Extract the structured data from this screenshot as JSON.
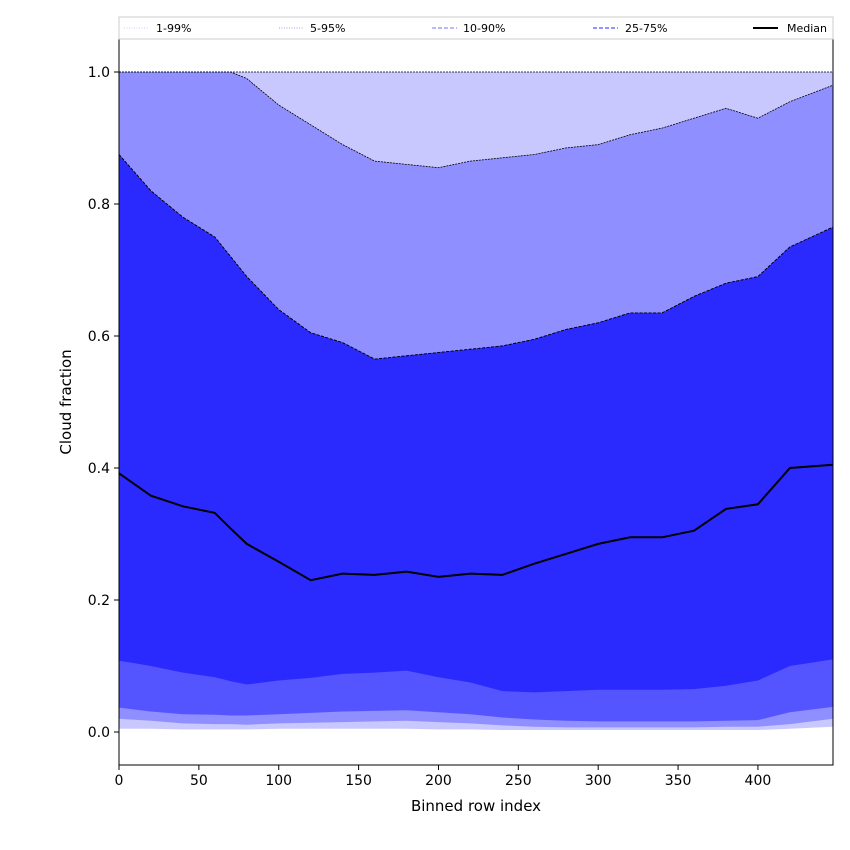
{
  "chart_data": {
    "type": "area",
    "xlabel": "Binned row index",
    "ylabel": "Cloud fraction",
    "xlim": [
      0,
      447
    ],
    "ylim": [
      -0.05,
      1.05
    ],
    "x_ticks": [
      "0",
      "50",
      "100",
      "150",
      "200",
      "250",
      "300",
      "350",
      "400"
    ],
    "y_ticks": [
      "0.0",
      "0.2",
      "0.4",
      "0.6",
      "0.8",
      "1.0"
    ],
    "grid": false,
    "legend_position": "top",
    "legend": [
      {
        "label": "1-99%",
        "style": "dotted",
        "color": "#d8d8ff"
      },
      {
        "label": "5-95%",
        "style": "dotted",
        "color": "#b0b0ff"
      },
      {
        "label": "10-90%",
        "style": "dashed",
        "color": "#8f8fff"
      },
      {
        "label": "25-75%",
        "style": "dashed",
        "color": "#5555ff"
      },
      {
        "label": "Median",
        "style": "solid",
        "color": "#000000"
      }
    ],
    "x": [
      0,
      20,
      40,
      60,
      70,
      80,
      100,
      120,
      140,
      160,
      180,
      200,
      220,
      240,
      260,
      280,
      300,
      320,
      340,
      360,
      380,
      400,
      420,
      447
    ],
    "bands": [
      {
        "name": "1-99%",
        "color": "#c8c8ff",
        "lower": [
          0.005,
          0.005,
          0.004,
          0.004,
          0.004,
          0.004,
          0.005,
          0.005,
          0.005,
          0.005,
          0.005,
          0.004,
          0.004,
          0.003,
          0.003,
          0.003,
          0.003,
          0.003,
          0.003,
          0.003,
          0.003,
          0.003,
          0.005,
          0.008
        ],
        "upper": [
          1.0,
          1.0,
          1.0,
          1.0,
          1.0,
          1.0,
          1.0,
          1.0,
          1.0,
          1.0,
          1.0,
          1.0,
          1.0,
          1.0,
          1.0,
          1.0,
          1.0,
          1.0,
          1.0,
          1.0,
          1.0,
          1.0,
          1.0,
          1.0
        ]
      },
      {
        "name": "5-95%",
        "color": "#8f8fff",
        "lower": [
          0.02,
          0.017,
          0.013,
          0.012,
          0.012,
          0.011,
          0.013,
          0.014,
          0.015,
          0.016,
          0.017,
          0.015,
          0.013,
          0.01,
          0.008,
          0.007,
          0.007,
          0.007,
          0.007,
          0.007,
          0.008,
          0.008,
          0.012,
          0.02
        ],
        "upper": [
          1.0,
          1.0,
          1.0,
          1.0,
          1.0,
          0.99,
          0.95,
          0.92,
          0.89,
          0.865,
          0.86,
          0.855,
          0.865,
          0.87,
          0.875,
          0.885,
          0.89,
          0.905,
          0.915,
          0.93,
          0.945,
          0.93,
          0.955,
          0.98
        ]
      },
      {
        "name": "10-90%",
        "color": "#5555ff",
        "lower": [
          0.037,
          0.031,
          0.027,
          0.026,
          0.025,
          0.025,
          0.027,
          0.029,
          0.031,
          0.032,
          0.033,
          0.03,
          0.027,
          0.022,
          0.019,
          0.017,
          0.016,
          0.016,
          0.016,
          0.016,
          0.017,
          0.018,
          0.03,
          0.038
        ],
        "upper": [
          0.875,
          0.82,
          0.78,
          0.75,
          0.72,
          0.69,
          0.64,
          0.605,
          0.59,
          0.565,
          0.57,
          0.575,
          0.58,
          0.585,
          0.595,
          0.61,
          0.62,
          0.635,
          0.635,
          0.66,
          0.68,
          0.69,
          0.735,
          0.765
        ]
      },
      {
        "name": "25-75%",
        "color": "#2a2aff",
        "lower": [
          0.108,
          0.1,
          0.09,
          0.083,
          0.077,
          0.072,
          0.078,
          0.082,
          0.088,
          0.09,
          0.093,
          0.083,
          0.075,
          0.062,
          0.06,
          0.062,
          0.064,
          0.064,
          0.064,
          0.065,
          0.07,
          0.078,
          0.1,
          0.11
        ],
        "upper": [
          0.875,
          0.82,
          0.78,
          0.75,
          0.72,
          0.69,
          0.64,
          0.605,
          0.59,
          0.565,
          0.57,
          0.575,
          0.58,
          0.585,
          0.595,
          0.61,
          0.62,
          0.635,
          0.635,
          0.66,
          0.68,
          0.69,
          0.735,
          0.765
        ]
      }
    ],
    "median": [
      0.392,
      0.358,
      0.342,
      0.332,
      0.308,
      0.285,
      0.258,
      0.23,
      0.24,
      0.238,
      0.243,
      0.235,
      0.24,
      0.238,
      0.255,
      0.27,
      0.285,
      0.295,
      0.295,
      0.305,
      0.338,
      0.345,
      0.4,
      0.405
    ]
  }
}
